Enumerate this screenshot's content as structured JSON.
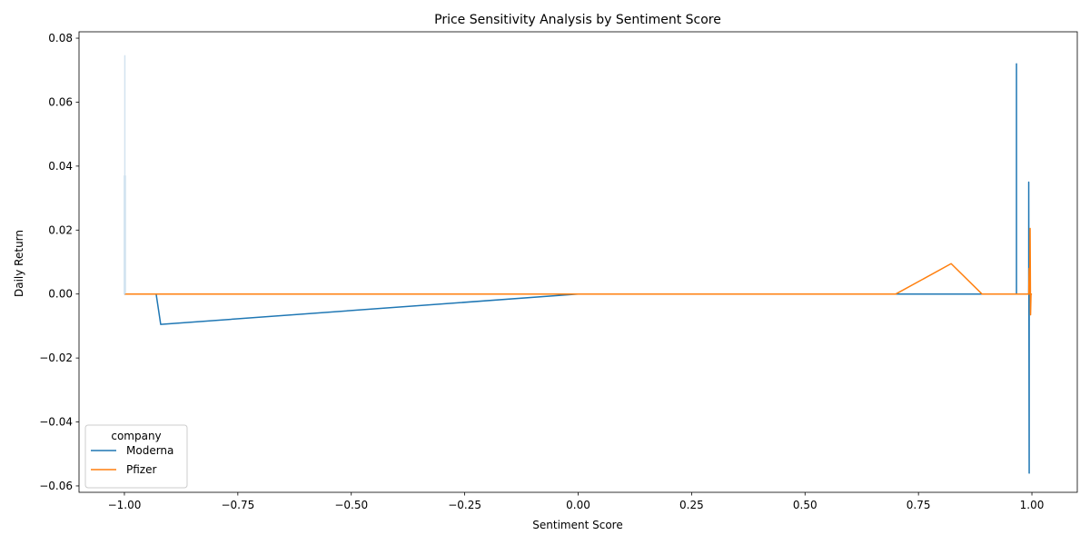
{
  "chart_data": {
    "type": "line",
    "title": "Price Sensitivity Analysis by Sentiment Score",
    "xlabel": "Sentiment Score",
    "ylabel": "Daily Return",
    "xlim": [
      -1.1,
      1.1
    ],
    "ylim": [
      -0.062,
      0.082
    ],
    "x_ticks": [
      -1.0,
      -0.75,
      -0.5,
      -0.25,
      0.0,
      0.25,
      0.5,
      0.75,
      1.0
    ],
    "x_tick_labels": [
      "−1.00",
      "−0.75",
      "−0.50",
      "−0.25",
      "0.00",
      "0.25",
      "0.50",
      "0.75",
      "1.00"
    ],
    "y_ticks": [
      -0.06,
      -0.04,
      -0.02,
      0.0,
      0.02,
      0.04,
      0.06,
      0.08
    ],
    "y_tick_labels": [
      "−0.06",
      "−0.04",
      "−0.02",
      "0.00",
      "0.02",
      "0.04",
      "0.06",
      "0.08"
    ],
    "grid": false,
    "legend": {
      "title": "company",
      "placement": "lower-left"
    },
    "series": [
      {
        "name": "Moderna",
        "color": "#1f77b4",
        "points": [
          [
            -0.999,
            0.0
          ],
          [
            -0.999,
            0.037
          ],
          [
            -0.999,
            0.0
          ],
          [
            -0.93,
            0.0
          ],
          [
            -0.92,
            -0.0095
          ],
          [
            0.0,
            0.0
          ],
          [
            0.966,
            0.0
          ],
          [
            0.966,
            0.072
          ],
          [
            0.966,
            0.0
          ],
          [
            0.993,
            0.0
          ],
          [
            0.993,
            0.035
          ],
          [
            0.994,
            -0.056
          ],
          [
            0.994,
            0.0
          ],
          [
            1.0,
            0.0
          ]
        ]
      },
      {
        "name": "Pfizer",
        "color": "#ff7f0e",
        "points": [
          [
            -0.999,
            0.0
          ],
          [
            0.0,
            0.0
          ],
          [
            0.7,
            0.0
          ],
          [
            0.822,
            0.0095
          ],
          [
            0.89,
            0.0
          ],
          [
            0.993,
            0.0
          ],
          [
            0.994,
            0.008
          ],
          [
            0.995,
            0.0
          ],
          [
            0.996,
            0.0205
          ],
          [
            0.997,
            -0.0065
          ],
          [
            0.998,
            0.0
          ],
          [
            1.0,
            0.0
          ]
        ]
      },
      {
        "name": "",
        "color": "#d2e3f0",
        "points": [
          [
            -0.999,
            0.0
          ],
          [
            -0.999,
            0.0745
          ],
          [
            -0.999,
            0.0
          ]
        ]
      }
    ]
  }
}
